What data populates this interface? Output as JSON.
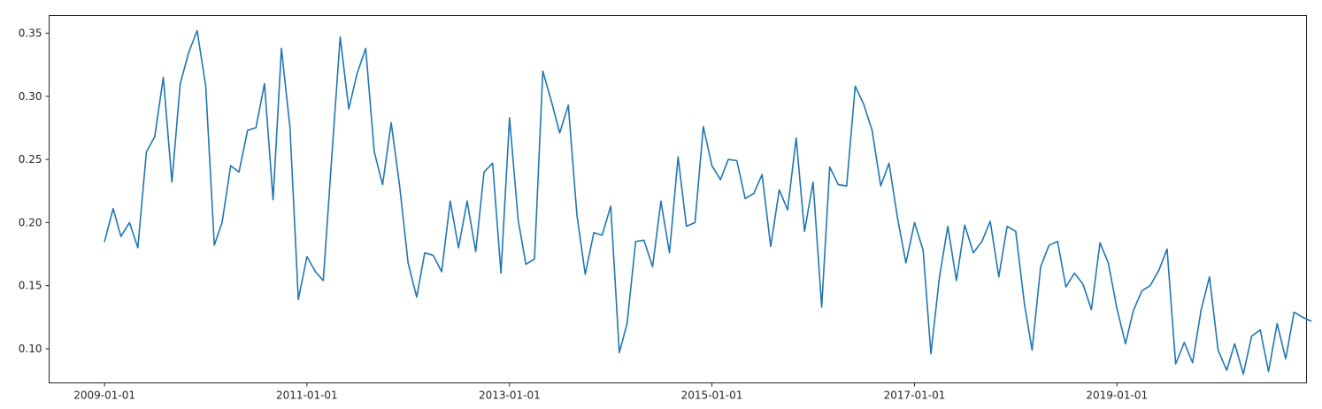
{
  "chart_data": {
    "type": "line",
    "title": "",
    "xlabel": "",
    "ylabel": "",
    "grid": false,
    "colors": {
      "series": "#1f77b4",
      "axes": "#262626"
    },
    "xlim": [
      "2008-06-15",
      "2020-11-15"
    ],
    "ylim": [
      0.073,
      0.364
    ],
    "xticks": [
      {
        "date": "2009-01-01",
        "label": "2009-01-01"
      },
      {
        "date": "2011-01-01",
        "label": "2011-01-01"
      },
      {
        "date": "2013-01-01",
        "label": "2013-01-01"
      },
      {
        "date": "2015-01-01",
        "label": "2015-01-01"
      },
      {
        "date": "2017-01-01",
        "label": "2017-01-01"
      },
      {
        "date": "2019-01-01",
        "label": "2019-01-01"
      }
    ],
    "yticks": [
      {
        "value": 0.1,
        "label": "0.10"
      },
      {
        "value": 0.15,
        "label": "0.15"
      },
      {
        "value": 0.2,
        "label": "0.20"
      },
      {
        "value": 0.25,
        "label": "0.25"
      },
      {
        "value": 0.3,
        "label": "0.30"
      },
      {
        "value": 0.35,
        "label": "0.35"
      }
    ],
    "series": [
      {
        "start": "2009-01",
        "frequency": "monthly",
        "values": [
          0.185,
          0.211,
          0.189,
          0.2,
          0.18,
          0.256,
          0.268,
          0.315,
          0.232,
          0.31,
          0.335,
          0.352,
          0.308,
          0.182,
          0.2,
          0.245,
          0.24,
          0.273,
          0.275,
          0.31,
          0.218,
          0.338,
          0.275,
          0.139,
          0.173,
          0.161,
          0.154,
          0.253,
          0.347,
          0.29,
          0.318,
          0.338,
          0.256,
          0.23,
          0.279,
          0.23,
          0.168,
          0.141,
          0.176,
          0.174,
          0.161,
          0.217,
          0.18,
          0.217,
          0.177,
          0.24,
          0.247,
          0.16,
          0.283,
          0.202,
          0.167,
          0.171,
          0.32,
          0.296,
          0.271,
          0.293,
          0.206,
          0.159,
          0.192,
          0.19,
          0.213,
          0.097,
          0.12,
          0.185,
          0.186,
          0.165,
          0.217,
          0.176,
          0.252,
          0.197,
          0.2,
          0.276,
          0.245,
          0.234,
          0.25,
          0.249,
          0.219,
          0.223,
          0.238,
          0.181,
          0.226,
          0.21,
          0.267,
          0.193,
          0.232,
          0.133,
          0.244,
          0.23,
          0.229,
          0.308,
          0.294,
          0.273,
          0.229,
          0.247,
          0.203,
          0.168,
          0.2,
          0.178,
          0.096,
          0.157,
          0.197,
          0.154,
          0.198,
          0.176,
          0.185,
          0.201,
          0.157,
          0.197,
          0.193,
          0.136,
          0.099,
          0.165,
          0.182,
          0.185,
          0.149,
          0.16,
          0.151,
          0.131,
          0.184,
          0.168,
          0.132,
          0.104,
          0.13,
          0.146,
          0.15,
          0.162,
          0.179,
          0.088,
          0.105,
          0.089,
          0.131,
          0.157,
          0.099,
          0.083,
          0.104,
          0.08,
          0.11,
          0.115,
          0.082,
          0.12,
          0.092,
          0.129,
          0.125,
          0.122
        ]
      }
    ]
  }
}
